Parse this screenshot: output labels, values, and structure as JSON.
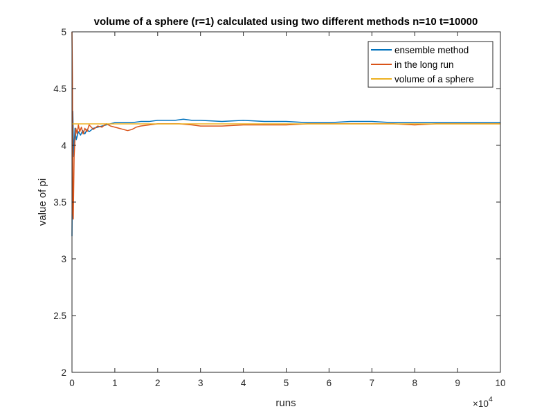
{
  "chart_data": {
    "type": "line",
    "title": "volume of a sphere (r=1) calculated using two different methods n=10  t=10000",
    "xlabel": "runs",
    "ylabel": "value of pi",
    "x_exponent_label": "×10",
    "x_exponent_power": "4",
    "xlim": [
      0,
      100000
    ],
    "ylim": [
      2,
      5
    ],
    "xticks": [
      0,
      10000,
      20000,
      30000,
      40000,
      50000,
      60000,
      70000,
      80000,
      90000,
      100000
    ],
    "xtick_labels": [
      "0",
      "1",
      "2",
      "3",
      "4",
      "5",
      "6",
      "7",
      "8",
      "9",
      "10"
    ],
    "yticks": [
      2,
      2.5,
      3,
      3.5,
      4,
      4.5,
      5
    ],
    "ytick_labels": [
      "2",
      "2.5",
      "3",
      "3.5",
      "4",
      "4.5",
      "5"
    ],
    "grid": false,
    "legend_position": "top-right",
    "series": [
      {
        "name": "ensemble method",
        "color": "#0072BD",
        "x": [
          0,
          200,
          400,
          700,
          1000,
          1500,
          2000,
          2500,
          3000,
          3500,
          4000,
          5000,
          6000,
          7000,
          8000,
          9000,
          10000,
          12000,
          14000,
          16000,
          18000,
          20000,
          22000,
          24000,
          26000,
          28000,
          30000,
          35000,
          40000,
          45000,
          50000,
          55000,
          60000,
          65000,
          70000,
          75000,
          80000,
          85000,
          90000,
          95000,
          100000
        ],
        "y": [
          3.2,
          4.3,
          3.9,
          4.15,
          4.05,
          4.12,
          4.09,
          4.13,
          4.1,
          4.14,
          4.12,
          4.15,
          4.16,
          4.17,
          4.18,
          4.19,
          4.2,
          4.2,
          4.2,
          4.21,
          4.21,
          4.22,
          4.22,
          4.22,
          4.23,
          4.22,
          4.22,
          4.21,
          4.22,
          4.21,
          4.21,
          4.2,
          4.2,
          4.21,
          4.21,
          4.2,
          4.2,
          4.2,
          4.2,
          4.2,
          4.2
        ]
      },
      {
        "name": "in the long run",
        "color": "#D95319",
        "x": [
          0,
          100,
          200,
          300,
          500,
          700,
          900,
          1200,
          1500,
          1800,
          2200,
          2600,
          3000,
          3500,
          4000,
          5000,
          6000,
          7000,
          8000,
          9000,
          10000,
          11000,
          12000,
          13000,
          14000,
          15000,
          16000,
          18000,
          20000,
          22000,
          25000,
          28000,
          30000,
          35000,
          40000,
          45000,
          50000,
          55000,
          60000,
          65000,
          70000,
          75000,
          80000,
          85000,
          90000,
          95000,
          100000
        ],
        "y": [
          5,
          4.6,
          3.4,
          3.35,
          3.9,
          4.05,
          4.15,
          4.1,
          4.18,
          4.12,
          4.16,
          4.1,
          4.15,
          4.12,
          4.18,
          4.14,
          4.17,
          4.16,
          4.19,
          4.17,
          4.16,
          4.15,
          4.14,
          4.13,
          4.14,
          4.16,
          4.17,
          4.18,
          4.19,
          4.19,
          4.19,
          4.18,
          4.17,
          4.17,
          4.18,
          4.18,
          4.18,
          4.19,
          4.19,
          4.19,
          4.19,
          4.19,
          4.18,
          4.19,
          4.19,
          4.19,
          4.19
        ]
      },
      {
        "name": "volume of a sphere",
        "color": "#EDB120",
        "x": [
          0,
          100000
        ],
        "y": [
          4.18879,
          4.18879
        ]
      }
    ]
  }
}
